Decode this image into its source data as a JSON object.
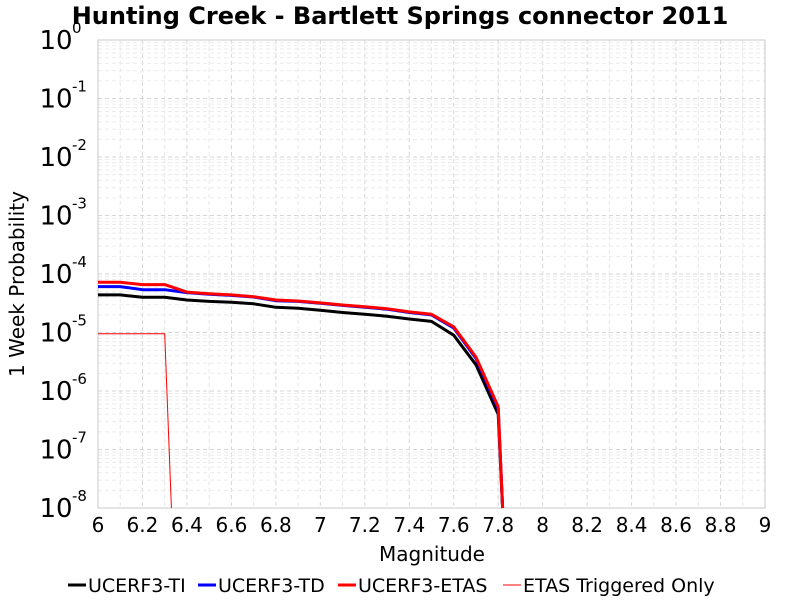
{
  "chart_data": {
    "type": "line",
    "title": "Hunting Creek - Bartlett Springs connector 2011",
    "xlabel": "Magnitude",
    "ylabel": "1 Week Probability",
    "xlim": [
      6,
      9
    ],
    "ylim": [
      1e-08,
      1
    ],
    "yscale": "log",
    "grid": true,
    "legend_position": "bottom",
    "xticks": [
      "6",
      "6.2",
      "6.4",
      "6.6",
      "6.8",
      "7",
      "7.2",
      "7.4",
      "7.6",
      "7.8",
      "8",
      "8.2",
      "8.4",
      "8.6",
      "8.8",
      "9"
    ],
    "yticks": [
      {
        "base": "10",
        "exp": "0"
      },
      {
        "base": "10",
        "exp": "-1"
      },
      {
        "base": "10",
        "exp": "-2"
      },
      {
        "base": "10",
        "exp": "-3"
      },
      {
        "base": "10",
        "exp": "-4"
      },
      {
        "base": "10",
        "exp": "-5"
      },
      {
        "base": "10",
        "exp": "-6"
      },
      {
        "base": "10",
        "exp": "-7"
      },
      {
        "base": "10",
        "exp": "-8"
      }
    ],
    "series": [
      {
        "name": "UCERF3-TI",
        "color": "#000000",
        "width": 3,
        "x": [
          6.0,
          6.1,
          6.2,
          6.3,
          6.4,
          6.5,
          6.6,
          6.7,
          6.8,
          6.9,
          7.0,
          7.1,
          7.2,
          7.3,
          7.4,
          7.5,
          7.6,
          7.7,
          7.8,
          7.82
        ],
        "y": [
          4.4e-05,
          4.4e-05,
          4e-05,
          4e-05,
          3.6e-05,
          3.4e-05,
          3.3e-05,
          3.1e-05,
          2.7e-05,
          2.6e-05,
          2.4e-05,
          2.2e-05,
          2.05e-05,
          1.9e-05,
          1.7e-05,
          1.55e-05,
          9e-06,
          2.8e-06,
          4e-07,
          1e-08
        ]
      },
      {
        "name": "UCERF3-TD",
        "color": "#0000ff",
        "width": 3,
        "x": [
          6.0,
          6.1,
          6.2,
          6.3,
          6.4,
          6.5,
          6.6,
          6.7,
          6.8,
          6.9,
          7.0,
          7.1,
          7.2,
          7.3,
          7.4,
          7.5,
          7.6,
          7.7,
          7.8,
          7.82
        ],
        "y": [
          6.1e-05,
          6.1e-05,
          5.4e-05,
          5.4e-05,
          4.8e-05,
          4.5e-05,
          4.3e-05,
          4.05e-05,
          3.5e-05,
          3.4e-05,
          3.15e-05,
          2.9e-05,
          2.7e-05,
          2.5e-05,
          2.2e-05,
          2e-05,
          1.2e-05,
          3.6e-06,
          5e-07,
          1e-08
        ]
      },
      {
        "name": "UCERF3-ETAS",
        "color": "#ff0000",
        "width": 3,
        "x": [
          6.0,
          6.1,
          6.2,
          6.3,
          6.4,
          6.5,
          6.6,
          6.7,
          6.8,
          6.9,
          7.0,
          7.1,
          7.2,
          7.3,
          7.4,
          7.5,
          7.6,
          7.7,
          7.8,
          7.82
        ],
        "y": [
          7.2e-05,
          7.2e-05,
          6.6e-05,
          6.6e-05,
          4.9e-05,
          4.6e-05,
          4.4e-05,
          4.1e-05,
          3.6e-05,
          3.45e-05,
          3.2e-05,
          2.95e-05,
          2.75e-05,
          2.55e-05,
          2.25e-05,
          2.05e-05,
          1.25e-05,
          3.8e-06,
          5.4e-07,
          1e-08
        ]
      },
      {
        "name": "ETAS Triggered Only",
        "color": "#ff0000",
        "width": 1,
        "x": [
          6.0,
          6.1,
          6.2,
          6.3,
          6.33
        ],
        "y": [
          9.5e-06,
          9.5e-06,
          9.5e-06,
          9.5e-06,
          1e-08
        ]
      }
    ]
  }
}
